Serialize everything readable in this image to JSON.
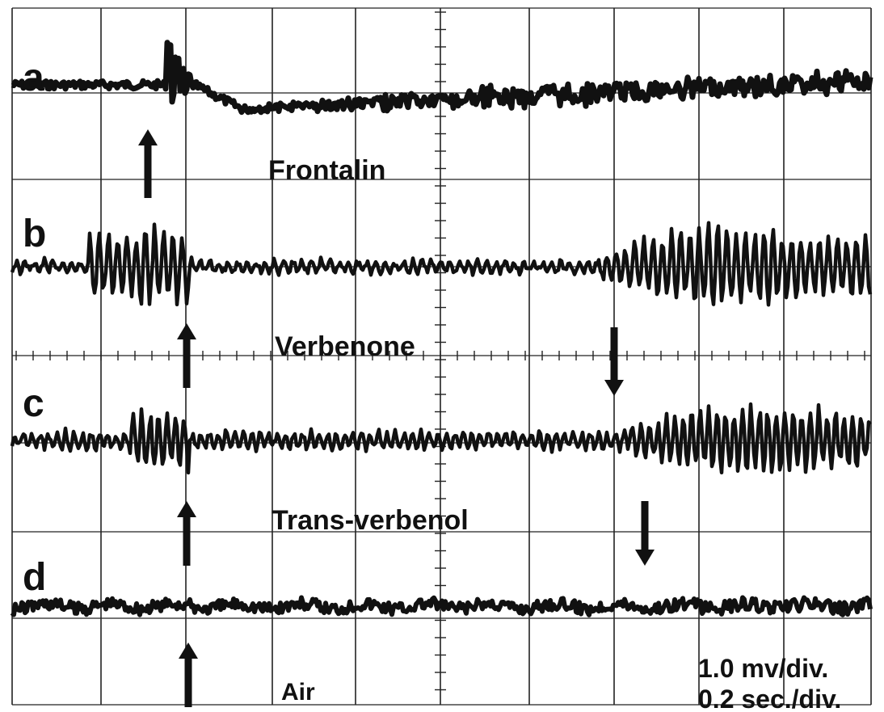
{
  "chart_data": {
    "type": "line",
    "panels": [
      {
        "label": "a",
        "stimulus": "Frontalin",
        "onset_arrow": "up",
        "offset_arrow": null
      },
      {
        "label": "b",
        "stimulus": "Verbenone",
        "onset_arrow": "up",
        "offset_arrow": "down"
      },
      {
        "label": "c",
        "stimulus": "Trans-verbenol",
        "onset_arrow": "up",
        "offset_arrow": "down"
      },
      {
        "label": "d",
        "stimulus": "Air",
        "onset_arrow": "up",
        "offset_arrow": null
      }
    ],
    "scale": {
      "voltage": "1.0 mv/div.",
      "time": "0.2 sec./div."
    },
    "grid": true,
    "x_divisions": 10,
    "y_divisions": 8,
    "trace_color": "#111111",
    "grid_color": "#222222"
  }
}
